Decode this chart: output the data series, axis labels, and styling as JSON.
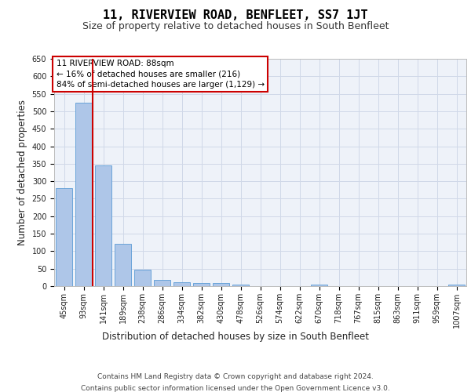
{
  "title": "11, RIVERVIEW ROAD, BENFLEET, SS7 1JT",
  "subtitle": "Size of property relative to detached houses in South Benfleet",
  "xlabel": "Distribution of detached houses by size in South Benfleet",
  "ylabel": "Number of detached properties",
  "footnote1": "Contains HM Land Registry data © Crown copyright and database right 2024.",
  "footnote2": "Contains public sector information licensed under the Open Government Licence v3.0.",
  "categories": [
    "45sqm",
    "93sqm",
    "141sqm",
    "189sqm",
    "238sqm",
    "286sqm",
    "334sqm",
    "382sqm",
    "430sqm",
    "478sqm",
    "526sqm",
    "574sqm",
    "622sqm",
    "670sqm",
    "718sqm",
    "767sqm",
    "815sqm",
    "863sqm",
    "911sqm",
    "959sqm",
    "1007sqm"
  ],
  "values": [
    280,
    525,
    345,
    120,
    48,
    18,
    12,
    10,
    8,
    5,
    1,
    0,
    0,
    5,
    0,
    0,
    0,
    0,
    0,
    0,
    5
  ],
  "bar_color": "#aec6e8",
  "bar_edge_color": "#5b9bd5",
  "vline_x": 1.44,
  "vline_color": "#cc0000",
  "annotation_text": "11 RIVERVIEW ROAD: 88sqm\n← 16% of detached houses are smaller (216)\n84% of semi-detached houses are larger (1,129) →",
  "annotation_box_color": "#ffffff",
  "annotation_box_edge": "#cc0000",
  "ylim": [
    0,
    650
  ],
  "yticks": [
    0,
    50,
    100,
    150,
    200,
    250,
    300,
    350,
    400,
    450,
    500,
    550,
    600,
    650
  ],
  "grid_color": "#d0d8e8",
  "bg_color": "#eef2f9",
  "title_fontsize": 11,
  "subtitle_fontsize": 9,
  "label_fontsize": 8.5,
  "tick_fontsize": 7,
  "footnote_fontsize": 6.5,
  "annot_fontsize": 7.5
}
